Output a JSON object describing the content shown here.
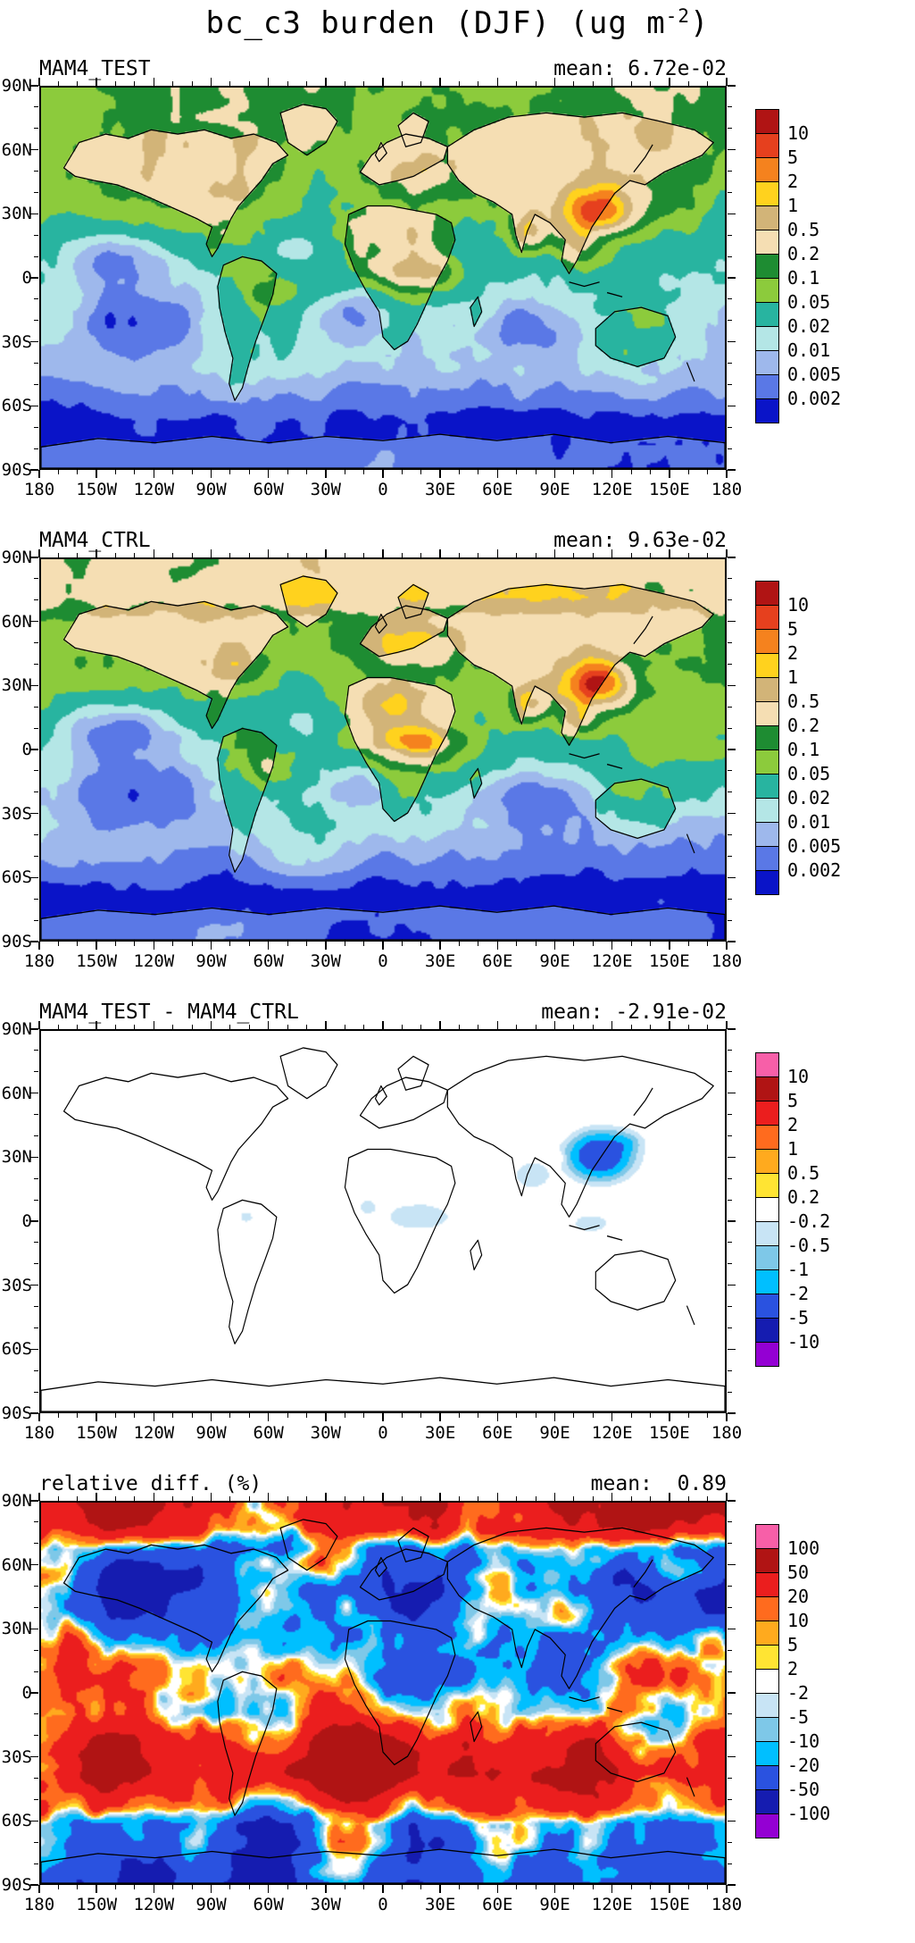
{
  "figure_title": {
    "pre": "bc_c3 burden (DJF) (ug m",
    "sup": "-2",
    "post": ")",
    "full": "bc_c3 burden (DJF) (ug m-2)"
  },
  "axes": {
    "lat_labels": [
      "90N",
      "60N",
      "30N",
      "0",
      "30S",
      "60S",
      "90S"
    ],
    "lon_labels": [
      "180",
      "150W",
      "120W",
      "90W",
      "60W",
      "30W",
      "0",
      "30E",
      "60E",
      "90E",
      "120E",
      "150E",
      "180"
    ]
  },
  "chart_data": [
    {
      "type": "heatmap",
      "subtype": "filled-contour-world-map",
      "title": "MAM4_TEST",
      "mean_label": "mean:",
      "mean_text": "mean: 6.72e-02",
      "mean_value": 0.0672,
      "lat_range": [
        -90,
        90
      ],
      "lon_range": [
        -180,
        180
      ],
      "levels": [
        0.002,
        0.005,
        0.01,
        0.02,
        0.05,
        0.1,
        0.2,
        0.5,
        1,
        2,
        5,
        10
      ],
      "colorbar_tick_labels_top_to_bottom": [
        "10",
        "5",
        "2",
        "1",
        "0.5",
        "0.2",
        "0.1",
        "0.05",
        "0.02",
        "0.01",
        "0.005",
        "0.002"
      ],
      "palette_top_to_bottom": [
        "#B01414",
        "#E6401E",
        "#F5821E",
        "#FFD21E",
        "#D2B478",
        "#F5DEB3",
        "#1E8C32",
        "#8CCB3C",
        "#28B4A0",
        "#B4E6E6",
        "#9EB8EC",
        "#5A78E6",
        "#0A14C8"
      ]
    },
    {
      "type": "heatmap",
      "subtype": "filled-contour-world-map",
      "title": "MAM4_CTRL",
      "mean_label": "mean:",
      "mean_text": "mean: 9.63e-02",
      "mean_value": 0.0963,
      "lat_range": [
        -90,
        90
      ],
      "lon_range": [
        -180,
        180
      ],
      "levels": [
        0.002,
        0.005,
        0.01,
        0.02,
        0.05,
        0.1,
        0.2,
        0.5,
        1,
        2,
        5,
        10
      ],
      "colorbar_tick_labels_top_to_bottom": [
        "10",
        "5",
        "2",
        "1",
        "0.5",
        "0.2",
        "0.1",
        "0.05",
        "0.02",
        "0.01",
        "0.005",
        "0.002"
      ],
      "palette_top_to_bottom": [
        "#B01414",
        "#E6401E",
        "#F5821E",
        "#FFD21E",
        "#D2B478",
        "#F5DEB3",
        "#1E8C32",
        "#8CCB3C",
        "#28B4A0",
        "#B4E6E6",
        "#9EB8EC",
        "#5A78E6",
        "#0A14C8"
      ]
    },
    {
      "type": "heatmap",
      "subtype": "filled-contour-world-map-difference",
      "title": "MAM4_TEST - MAM4_CTRL",
      "mean_label": "mean:",
      "mean_text": "mean: -2.91e-02",
      "mean_value": -0.0291,
      "lat_range": [
        -90,
        90
      ],
      "lon_range": [
        -180,
        180
      ],
      "levels": [
        -10,
        -5,
        -2,
        -1,
        -0.5,
        -0.2,
        0.2,
        0.5,
        1,
        2,
        5,
        10
      ],
      "colorbar_tick_labels_top_to_bottom": [
        "10",
        "5",
        "2",
        "1",
        "0.5",
        "0.2",
        "-0.2",
        "-0.5",
        "-1",
        "-2",
        "-5",
        "-10"
      ],
      "palette_top_to_bottom": [
        "#F75FA8",
        "#B01414",
        "#EB1E1E",
        "#FF6B1E",
        "#FFAA1E",
        "#FFE433",
        "#FFFFFF",
        "#C8E4F5",
        "#7EC8E8",
        "#00BFFF",
        "#2A52E0",
        "#151CB0",
        "#9400D3"
      ]
    },
    {
      "type": "heatmap",
      "subtype": "filled-contour-world-map-relative-difference",
      "title": "relative diff. (%)",
      "mean_label": "mean:",
      "mean_text": "mean:  0.89",
      "mean_value": 0.89,
      "lat_range": [
        -90,
        90
      ],
      "lon_range": [
        -180,
        180
      ],
      "levels": [
        -100,
        -50,
        -20,
        -10,
        -5,
        -2,
        2,
        5,
        10,
        20,
        50,
        100
      ],
      "colorbar_tick_labels_top_to_bottom": [
        "100",
        "50",
        "20",
        "10",
        "5",
        "2",
        "-2",
        "-5",
        "-10",
        "-20",
        "-50",
        "-100"
      ],
      "palette_top_to_bottom": [
        "#F75FA8",
        "#B01414",
        "#EB1E1E",
        "#FF6B1E",
        "#FFAA1E",
        "#FFE433",
        "#FFFFFF",
        "#C8E4F5",
        "#7EC8E8",
        "#00BFFF",
        "#2A52E0",
        "#151CB0",
        "#9400D3"
      ]
    }
  ]
}
